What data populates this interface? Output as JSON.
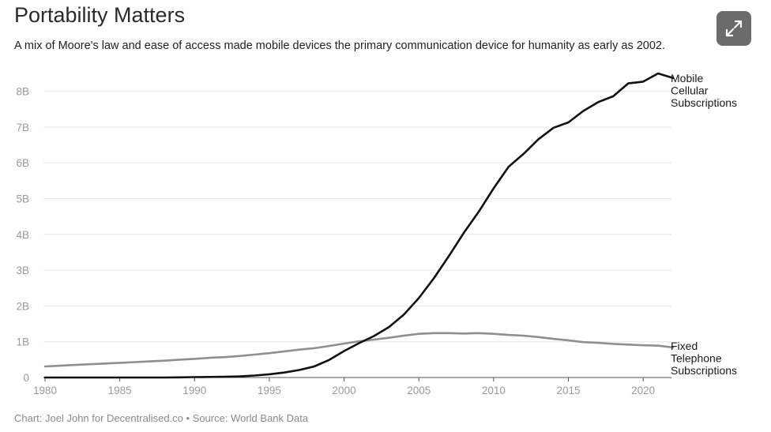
{
  "header": {
    "title": "Portability Matters",
    "subtitle": "A mix of Moore's law and ease of access made mobile devices the primary communication device for humanity as early as 2002.",
    "expand_icon": "expand-arrows-icon"
  },
  "footer": {
    "credit": "Chart: Joel John for Decentralised.co • Source: World Bank Data"
  },
  "colors": {
    "mobile": "#111111",
    "fixed": "#8f8f8f",
    "grid": "#e6e6e6",
    "axis": "#555555",
    "button_bg": "#6b6b6b"
  },
  "chart_data": {
    "type": "line",
    "title": "Portability Matters",
    "xlabel": "",
    "ylabel": "",
    "xlim": [
      1980,
      2022
    ],
    "ylim": [
      0,
      8.5
    ],
    "x_ticks": [
      1980,
      1985,
      1990,
      1995,
      2000,
      2005,
      2010,
      2015,
      2020
    ],
    "y_ticks": [
      0,
      1,
      2,
      3,
      4,
      5,
      6,
      7,
      8
    ],
    "y_tick_labels": [
      "0",
      "1B",
      "2B",
      "3B",
      "4B",
      "5B",
      "6B",
      "7B",
      "8B"
    ],
    "grid": true,
    "x": [
      1980,
      1981,
      1982,
      1983,
      1984,
      1985,
      1986,
      1987,
      1988,
      1989,
      1990,
      1991,
      1992,
      1993,
      1994,
      1995,
      1996,
      1997,
      1998,
      1999,
      2000,
      2001,
      2002,
      2003,
      2004,
      2005,
      2006,
      2007,
      2008,
      2009,
      2010,
      2011,
      2012,
      2013,
      2014,
      2015,
      2016,
      2017,
      2018,
      2019,
      2020,
      2021,
      2022
    ],
    "series": [
      {
        "name": "Mobile Cellular Subscriptions",
        "label_lines": [
          "Mobile",
          "Cellular",
          "Subscriptions"
        ],
        "values": [
          0,
          0,
          0,
          0,
          0,
          0,
          0,
          0,
          0,
          0.004,
          0.01,
          0.015,
          0.02,
          0.03,
          0.055,
          0.09,
          0.14,
          0.21,
          0.31,
          0.49,
          0.74,
          0.96,
          1.16,
          1.41,
          1.76,
          2.22,
          2.77,
          3.39,
          4.04,
          4.63,
          5.29,
          5.89,
          6.25,
          6.66,
          6.98,
          7.13,
          7.45,
          7.7,
          7.86,
          8.22,
          8.27,
          8.5,
          8.37
        ]
      },
      {
        "name": "Fixed Telephone Subscriptions",
        "label_lines": [
          "Fixed",
          "Telephone",
          "Subscriptions"
        ],
        "values": [
          0.31,
          0.33,
          0.35,
          0.37,
          0.39,
          0.41,
          0.43,
          0.45,
          0.47,
          0.5,
          0.52,
          0.55,
          0.57,
          0.6,
          0.64,
          0.68,
          0.73,
          0.78,
          0.82,
          0.88,
          0.95,
          1.01,
          1.06,
          1.11,
          1.17,
          1.22,
          1.24,
          1.24,
          1.23,
          1.24,
          1.22,
          1.19,
          1.17,
          1.13,
          1.08,
          1.04,
          0.99,
          0.97,
          0.94,
          0.92,
          0.9,
          0.89,
          0.84
        ]
      }
    ]
  }
}
